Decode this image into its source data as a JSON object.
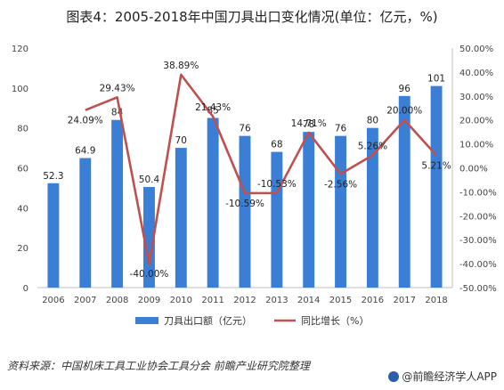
{
  "title": "图表4：2005-2018年中国刀具出口变化情况(单位：亿元，%)",
  "source": "资料来源：中国机床工具工业协会工具分会 前瞻产业研究院整理",
  "brand": "@前瞻经济学人APP",
  "chart_data": {
    "type": "bar+line",
    "categories": [
      "2006",
      "2007",
      "2008",
      "2009",
      "2010",
      "2011",
      "2012",
      "2013",
      "2014",
      "2015",
      "2016",
      "2017",
      "2018"
    ],
    "series": [
      {
        "name": "刀具出口额（亿元）",
        "type": "bar",
        "axis": "left",
        "color": "#3a7fd5",
        "values": [
          52.3,
          64.9,
          84,
          50.4,
          70,
          85,
          76,
          68,
          78,
          76,
          80,
          96,
          101
        ],
        "labels": [
          "52.3",
          "64.9",
          "84",
          "50.4",
          "70",
          "85",
          "76",
          "68",
          "78",
          "76",
          "80",
          "96",
          "101"
        ]
      },
      {
        "name": "同比增长（%）",
        "type": "line",
        "axis": "right",
        "color": "#c0504d",
        "values": [
          null,
          24.09,
          29.43,
          -40.0,
          38.89,
          21.43,
          -10.59,
          -10.53,
          14.71,
          -2.56,
          5.26,
          20.0,
          5.21
        ],
        "labels": [
          "",
          "24.09%",
          "29.43%",
          "-40.00%",
          "38.89%",
          "21.43%",
          "-10.59%",
          "-10.53%",
          "14.71%",
          "-2.56%",
          "5.26%",
          "20.00%",
          "5.21%"
        ]
      }
    ],
    "y_left": {
      "ylim": [
        0,
        120
      ],
      "ticks": [
        "0",
        "20",
        "40",
        "60",
        "80",
        "100",
        "120"
      ]
    },
    "y_right": {
      "ylim": [
        -50,
        50
      ],
      "ticks": [
        "-50.00%",
        "-40.00%",
        "-30.00%",
        "-20.00%",
        "-10.00%",
        "0.00%",
        "10.00%",
        "20.00%",
        "30.00%",
        "40.00%",
        "50.00%"
      ]
    },
    "legend": {
      "placement": "bottom",
      "items": [
        "刀具出口额（亿元）",
        "同比增长（%）"
      ]
    },
    "grid": false
  }
}
